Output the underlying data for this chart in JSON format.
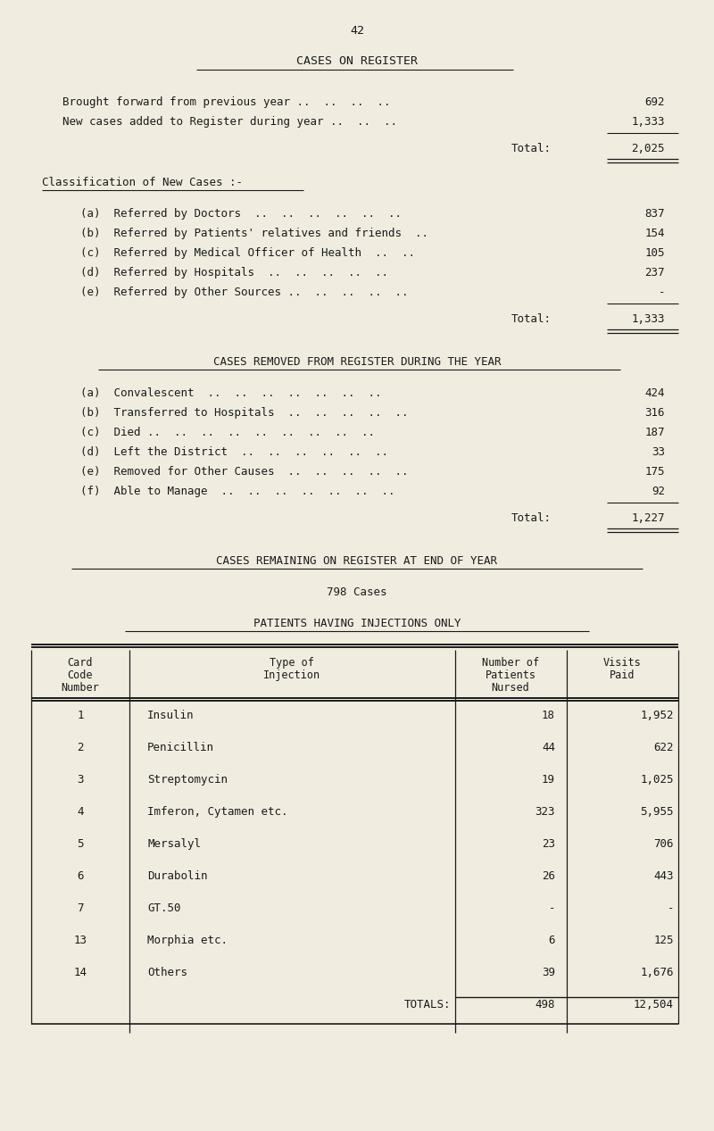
{
  "bg_color": "#f0ede0",
  "text_color": "#1a1a1a",
  "page_number": "42",
  "main_title": "CASES ON REGISTER",
  "section1_lines": [
    [
      "Brought forward from previous year ..  ..  ..  ..",
      "692"
    ],
    [
      "New cases added to Register during year ..  ..  ..",
      "1,333"
    ]
  ],
  "section1_total_label": "Total:",
  "section1_total_value": "2,025",
  "section2_title": "Classification of New Cases :-",
  "section2_lines": [
    [
      "(a)  Referred by Doctors  ..  ..  ..  ..  ..  ..",
      "837"
    ],
    [
      "(b)  Referred by Patients' relatives and friends  ..",
      "154"
    ],
    [
      "(c)  Referred by Medical Officer of Health  ..  ..",
      "105"
    ],
    [
      "(d)  Referred by Hospitals  ..  ..  ..  ..  ..",
      "237"
    ],
    [
      "(e)  Referred by Other Sources ..  ..  ..  ..  ..",
      "-"
    ]
  ],
  "section2_total_label": "Total:",
  "section2_total_value": "1,333",
  "section3_title": "CASES REMOVED FROM REGISTER DURING THE YEAR",
  "section3_lines": [
    [
      "(a)  Convalescent  ..  ..  ..  ..  ..  ..  ..",
      "424"
    ],
    [
      "(b)  Transferred to Hospitals  ..  ..  ..  ..  ..",
      "316"
    ],
    [
      "(c)  Died ..  ..  ..  ..  ..  ..  ..  ..  ..",
      "187"
    ],
    [
      "(d)  Left the District  ..  ..  ..  ..  ..  ..",
      "33"
    ],
    [
      "(e)  Removed for Other Causes  ..  ..  ..  ..  ..",
      "175"
    ],
    [
      "(f)  Able to Manage  ..  ..  ..  ..  ..  ..  ..",
      "92"
    ]
  ],
  "section3_total_label": "Total:",
  "section3_total_value": "1,227",
  "section4_title": "CASES REMAINING ON REGISTER AT END OF YEAR",
  "section4_value": "798 Cases",
  "section5_title": "PATIENTS HAVING INJECTIONS ONLY",
  "table_headers": [
    "Card\nCode\nNumber",
    "Type of\nInjection",
    "Number of\nPatients\nNursed",
    "Visits\nPaid"
  ],
  "table_rows": [
    [
      "1",
      "Insulin",
      "18",
      "1,952"
    ],
    [
      "2",
      "Penicillin",
      "44",
      "622"
    ],
    [
      "3",
      "Streptomycin",
      "19",
      "1,025"
    ],
    [
      "4",
      "Imferon, Cytamen etc.",
      "323",
      "5,955"
    ],
    [
      "5",
      "Mersalyl",
      "23",
      "706"
    ],
    [
      "6",
      "Durabolin",
      "26",
      "443"
    ],
    [
      "7",
      "GT.50",
      "-",
      "-"
    ],
    [
      "13",
      "Morphia etc.",
      "6",
      "125"
    ],
    [
      "14",
      "Others",
      "39",
      "1,676"
    ]
  ],
  "table_totals": [
    "",
    "TOTALS:",
    "498",
    "12,504"
  ],
  "font_size": 9.5,
  "small_font": 9.0
}
